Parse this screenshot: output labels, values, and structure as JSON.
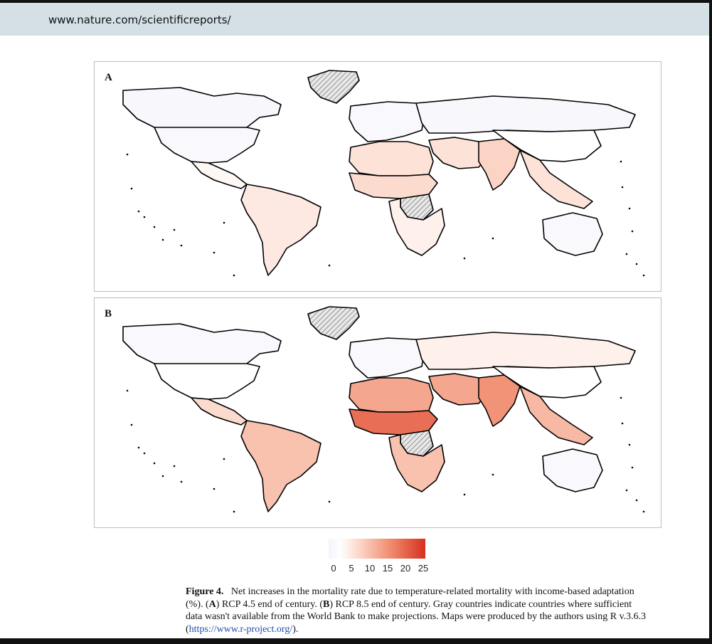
{
  "header": {
    "url": "www.nature.com/scientificreports/"
  },
  "figure": {
    "panels": [
      {
        "label": "A"
      },
      {
        "label": "B"
      }
    ],
    "legend": {
      "ticks": [
        "0",
        "5",
        "10",
        "15",
        "20",
        "25"
      ],
      "min_color": "#f7f7fb",
      "max_color": "#d7301f"
    },
    "caption": {
      "label": "Figure 4.",
      "part1": "Net increases in the mortality rate due to temperature-related mortality with income-based adaptation (%). (",
      "bold_a": "A",
      "part2": ") RCP 4.5 end of century. (",
      "bold_b": "B",
      "part3": ") RCP 8.5 end of century. Gray countries indicate countries where sufficient data wasn't available from the World Bank to make projections. Maps were produced by the authors using R v.3.6.3 (",
      "link": "https://www.r-project.org/",
      "part4": ")."
    }
  },
  "chart_data": {
    "type": "heatmap",
    "title": "",
    "panels": [
      {
        "label": "A",
        "scenario": "RCP 4.5 end of century",
        "region_values": {
          "north_america": 0.5,
          "canada": 0.3,
          "greenland": null,
          "central_america": 2,
          "south_america": 4,
          "europe": 0.5,
          "russia": 0.3,
          "north_africa": 5,
          "sahel": 6,
          "central_africa": null,
          "southern_africa": 3,
          "middle_east": 5,
          "south_asia": 7,
          "east_asia": 1,
          "southeast_asia": 5,
          "australia": 0.5
        }
      },
      {
        "label": "B",
        "scenario": "RCP 8.5 end of century",
        "region_values": {
          "north_america": 1,
          "canada": 0.5,
          "greenland": null,
          "central_america": 6,
          "south_america": 9,
          "europe": 0.5,
          "russia": 3,
          "north_africa": 12,
          "sahel": 18,
          "central_africa": null,
          "southern_africa": 9,
          "middle_east": 12,
          "south_asia": 14,
          "east_asia": 1,
          "southeast_asia": 10,
          "australia": 0.5
        }
      }
    ],
    "legend": {
      "min": 0,
      "max": 25,
      "ticks": [
        0,
        5,
        10,
        15,
        20,
        25
      ]
    }
  }
}
